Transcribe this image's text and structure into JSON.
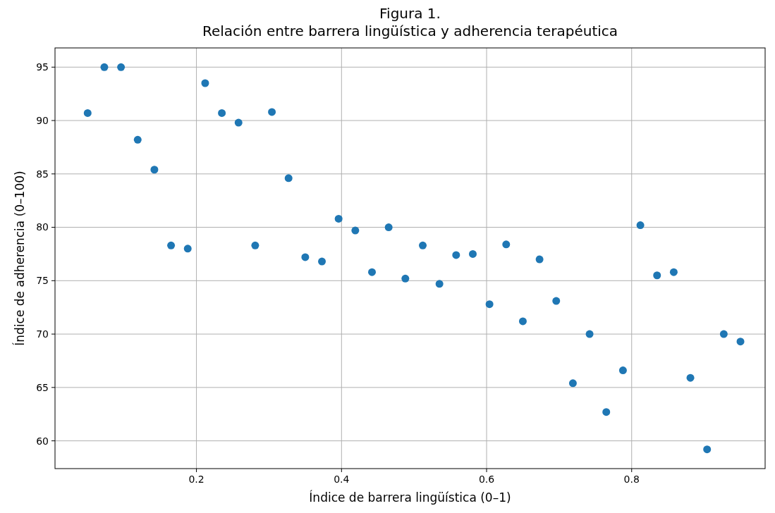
{
  "chart_data": {
    "type": "scatter",
    "title": "Figura 1.\nRelación entre barrera lingüística y adherencia terapéutica",
    "xlabel": "Índice de barrera lingüística (0–1)",
    "ylabel": "Índice de adherencia (0–100)",
    "x": [
      0.05,
      0.073,
      0.096,
      0.119,
      0.142,
      0.165,
      0.188,
      0.212,
      0.235,
      0.258,
      0.281,
      0.304,
      0.327,
      0.35,
      0.373,
      0.396,
      0.419,
      0.442,
      0.465,
      0.488,
      0.512,
      0.535,
      0.558,
      0.581,
      0.604,
      0.627,
      0.65,
      0.673,
      0.696,
      0.719,
      0.742,
      0.765,
      0.788,
      0.812,
      0.835,
      0.858,
      0.881,
      0.904,
      0.927,
      0.95
    ],
    "series": [
      {
        "color": "#1f77b4",
        "values": [
          90.7,
          95,
          95,
          88.2,
          85.4,
          78.3,
          78.0,
          93.5,
          90.7,
          89.8,
          78.3,
          90.8,
          84.6,
          77.2,
          76.8,
          80.8,
          79.7,
          75.8,
          80.0,
          75.2,
          78.3,
          74.7,
          77.4,
          77.5,
          72.8,
          78.4,
          71.2,
          77.0,
          73.1,
          65.4,
          70.0,
          62.7,
          66.6,
          80.2,
          75.5,
          75.8,
          65.9,
          59.2,
          70.0,
          69.3
        ]
      }
    ],
    "xlim": [
      0.005,
      0.984
    ],
    "ylim": [
      57.4,
      96.8
    ],
    "xticks": [
      0.2,
      0.4,
      0.6,
      0.8
    ],
    "yticks": [
      60,
      65,
      70,
      75,
      80,
      85,
      90,
      95
    ],
    "grid": true,
    "marker": "circle"
  }
}
